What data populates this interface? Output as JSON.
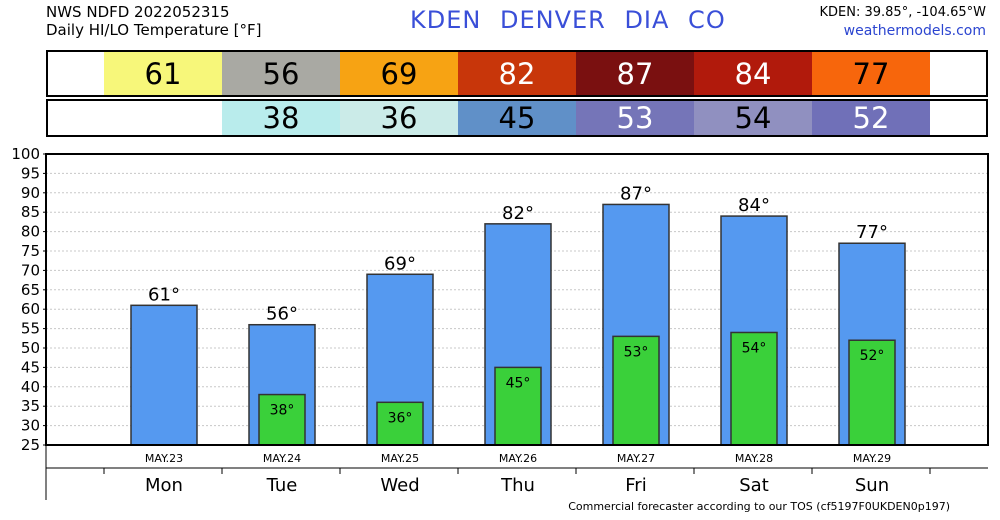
{
  "header": {
    "line1": "NWS NDFD 2022052315",
    "line2": "Daily HI/LO Temperature [°F]",
    "station": "KDEN  DENVER  DIA     CO",
    "coords": "KDEN: 39.85°, -104.65°W",
    "site": "weathermodels.com"
  },
  "footer": "Commercial forecaster according to our TOS (cf5197F0UKDEN0p197)",
  "hi_strip": [
    {
      "value": "61",
      "bg": "#f7f77a",
      "fg": "#000000"
    },
    {
      "value": "56",
      "bg": "#a9a9a3",
      "fg": "#000000"
    },
    {
      "value": "69",
      "bg": "#f7a313",
      "fg": "#000000"
    },
    {
      "value": "82",
      "bg": "#c8360a",
      "fg": "#ffffff"
    },
    {
      "value": "87",
      "bg": "#7a1010",
      "fg": "#ffffff"
    },
    {
      "value": "84",
      "bg": "#b11a0c",
      "fg": "#ffffff"
    },
    {
      "value": "77",
      "bg": "#f7660c",
      "fg": "#000000"
    }
  ],
  "lo_strip": [
    {
      "value": "",
      "bg": "#ffffff",
      "fg": "#000000"
    },
    {
      "value": "38",
      "bg": "#b9ecec",
      "fg": "#000000"
    },
    {
      "value": "36",
      "bg": "#cbebe8",
      "fg": "#000000"
    },
    {
      "value": "45",
      "bg": "#6090c8",
      "fg": "#000000"
    },
    {
      "value": "53",
      "bg": "#7575b8",
      "fg": "#ffffff"
    },
    {
      "value": "54",
      "bg": "#9090c0",
      "fg": "#000000"
    },
    {
      "value": "52",
      "bg": "#7070b8",
      "fg": "#ffffff"
    }
  ],
  "chart_data": {
    "type": "bar",
    "ylim": [
      25,
      100
    ],
    "yticks": [
      25,
      30,
      35,
      40,
      45,
      50,
      55,
      60,
      65,
      70,
      75,
      80,
      85,
      90,
      95,
      100
    ],
    "grid": true,
    "dates": [
      "MAY.23",
      "MAY.24",
      "MAY.25",
      "MAY.26",
      "MAY.27",
      "MAY.28",
      "MAY.29"
    ],
    "categories": [
      "Mon",
      "Tue",
      "Wed",
      "Thu",
      "Fri",
      "Sat",
      "Sun"
    ],
    "series": [
      {
        "values": [
          61,
          56,
          69,
          82,
          87,
          84,
          77
        ],
        "color": "#5599f0"
      },
      {
        "values": [
          null,
          38,
          36,
          45,
          53,
          54,
          52
        ],
        "color": "#3ad03a"
      }
    ],
    "hi_labels": [
      "61°",
      "56°",
      "69°",
      "82°",
      "87°",
      "84°",
      "77°"
    ],
    "lo_labels": [
      "",
      "38°",
      "36°",
      "45°",
      "53°",
      "54°",
      "52°"
    ]
  }
}
